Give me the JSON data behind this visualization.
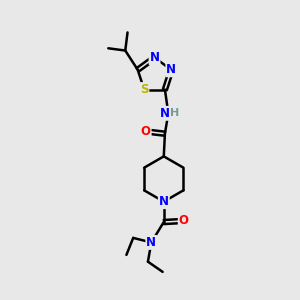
{
  "background_color": "#e8e8e8",
  "atom_colors": {
    "C": "#000000",
    "N": "#0000ff",
    "O": "#ff0000",
    "S": "#b8b800",
    "H": "#7a9a9a"
  },
  "bond_color": "#000000",
  "bond_width": 1.8,
  "fig_width": 3.0,
  "fig_height": 3.0,
  "dpi": 100
}
